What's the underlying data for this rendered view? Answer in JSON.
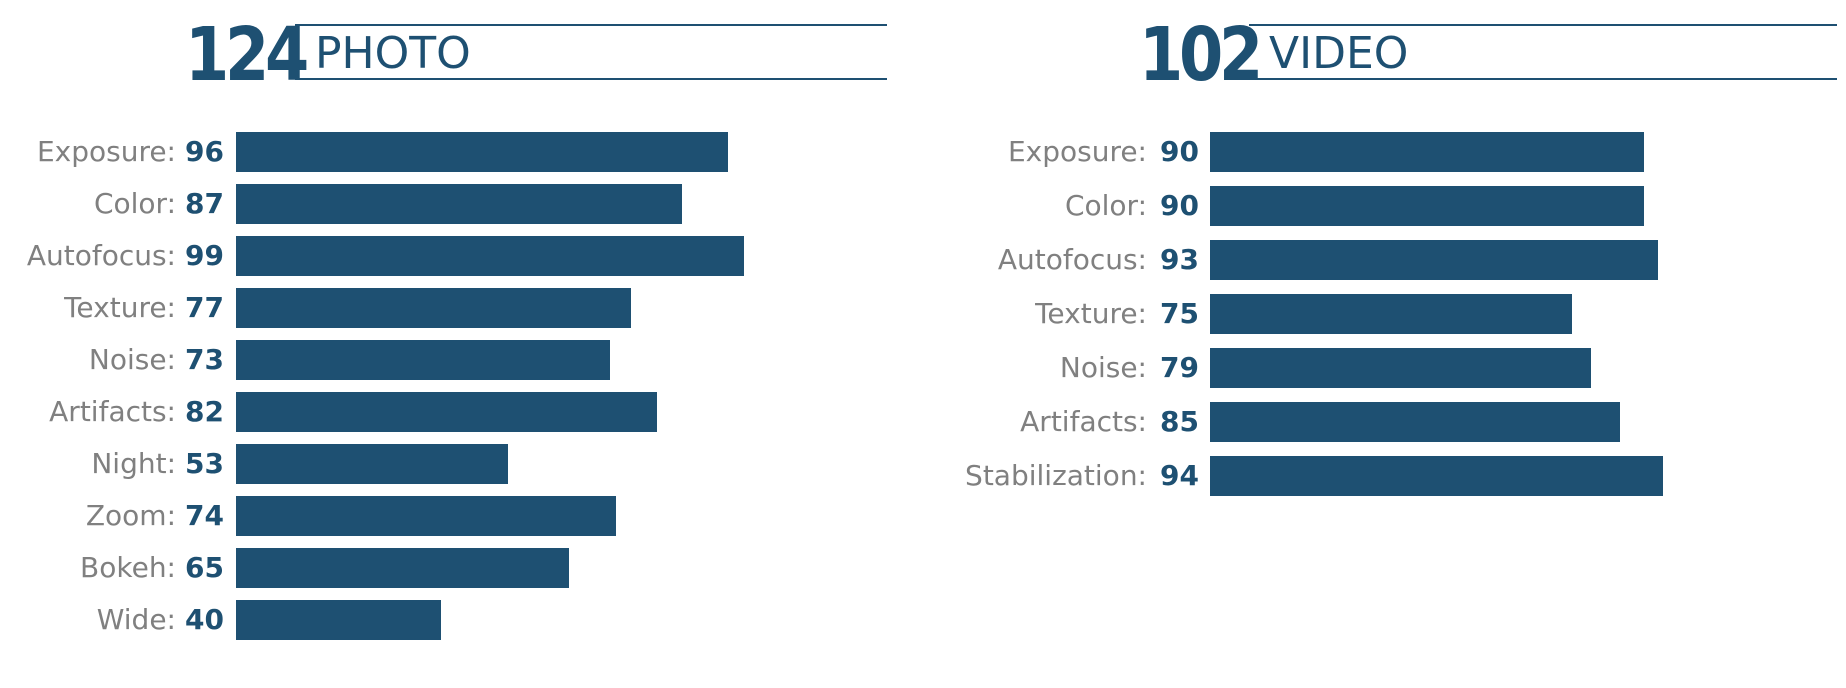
{
  "chart_data": [
    {
      "type": "bar",
      "orientation": "horizontal",
      "score": "124",
      "title": "PHOTO",
      "categories": [
        "Exposure",
        "Color",
        "Autofocus",
        "Texture",
        "Noise",
        "Artifacts",
        "Night",
        "Zoom",
        "Bokeh",
        "Wide"
      ],
      "values": [
        96,
        87,
        99,
        77,
        73,
        82,
        53,
        74,
        65,
        40
      ],
      "bar_color": "#1e5072",
      "label_color": "#808080",
      "value_color": "#1e5072",
      "grid": false,
      "legend": "none"
    },
    {
      "type": "bar",
      "orientation": "horizontal",
      "score": "102",
      "title": "VIDEO",
      "categories": [
        "Exposure",
        "Color",
        "Autofocus",
        "Texture",
        "Noise",
        "Artifacts",
        "Stabilization"
      ],
      "values": [
        90,
        90,
        93,
        75,
        79,
        85,
        94
      ],
      "bar_color": "#1e5072",
      "label_color": "#808080",
      "value_color": "#1e5072",
      "grid": false,
      "legend": "none"
    }
  ]
}
